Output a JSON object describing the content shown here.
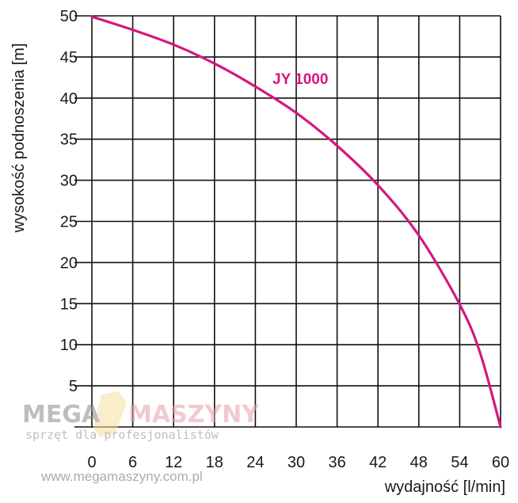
{
  "chart_data": {
    "type": "line",
    "title": "",
    "xlabel": "wydajność [l/min]",
    "ylabel": "wysokość podnoszenia [m]",
    "xlim": [
      0,
      60
    ],
    "ylim": [
      0,
      50
    ],
    "xticks": [
      0,
      6,
      12,
      18,
      24,
      30,
      36,
      42,
      48,
      54,
      60
    ],
    "yticks": [
      5,
      10,
      15,
      20,
      25,
      30,
      35,
      40,
      45,
      50
    ],
    "grid": true,
    "series": [
      {
        "name": "JY 1000",
        "color": "#d4187f",
        "x": [
          0,
          6,
          12,
          18,
          24,
          30,
          36,
          42,
          48,
          54,
          57,
          60
        ],
        "y": [
          49.9,
          48.3,
          46.5,
          44.2,
          41.4,
          38.2,
          34.2,
          29.4,
          23.3,
          14.9,
          9.0,
          0.0
        ]
      }
    ]
  },
  "watermark": {
    "brand_left": "MEGA",
    "brand_right": "MASZYNY",
    "tagline": "sprzęt dla profesjonalistów",
    "url": "www.megamaszyny.com.pl"
  }
}
